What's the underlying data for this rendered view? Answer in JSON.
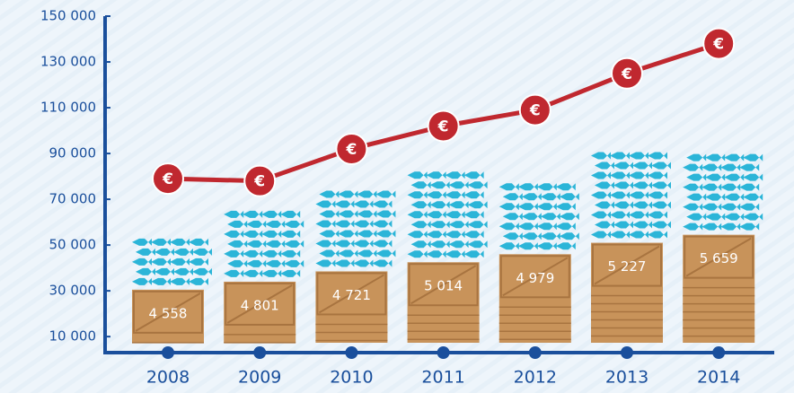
{
  "chart_data": {
    "type": "crate-fish-line",
    "categories": [
      "2008",
      "2009",
      "2010",
      "2011",
      "2012",
      "2013",
      "2014"
    ],
    "ylim": [
      3000,
      150000
    ],
    "yticks": [
      {
        "value": 10000,
        "label": "10 000"
      },
      {
        "value": 30000,
        "label": "30 000"
      },
      {
        "value": 50000,
        "label": "50 000"
      },
      {
        "value": 70000,
        "label": "70 000"
      },
      {
        "value": 90000,
        "label": "90 000"
      },
      {
        "value": 110000,
        "label": "110 000"
      },
      {
        "value": 130000,
        "label": "130 000"
      },
      {
        "value": 150000,
        "label": "150 000"
      }
    ],
    "marker_symbol": "€",
    "crate_labels": [
      "4 558",
      "4 801",
      "4 721",
      "5 014",
      "4 979",
      "5 227",
      "5 659"
    ],
    "series": [
      {
        "kind": "crates",
        "color": "#c8935a",
        "values": [
          30500,
          34000,
          38500,
          42500,
          46000,
          51000,
          54500
        ]
      },
      {
        "kind": "fish",
        "color": "#2bb5d8",
        "values": [
          56000,
          65000,
          74000,
          83000,
          78000,
          91000,
          90000
        ]
      },
      {
        "kind": "line",
        "color": "#c0282f",
        "values": [
          79000,
          78000,
          92000,
          102000,
          109000,
          125000,
          138000
        ]
      }
    ]
  }
}
